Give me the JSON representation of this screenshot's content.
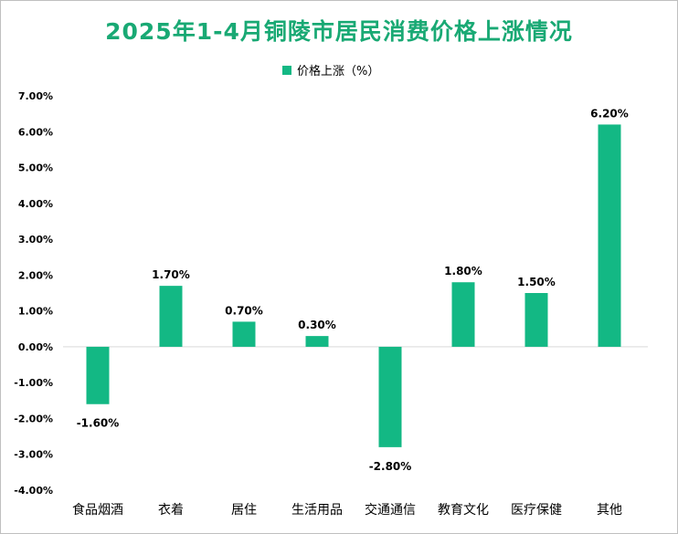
{
  "chart_data": {
    "type": "bar",
    "title": "2025年1-4月铜陵市居民消费价格上涨情况",
    "categories": [
      "食品烟酒",
      "衣着",
      "居住",
      "生活用品",
      "交通通信",
      "教育文化",
      "医疗保健",
      "其他"
    ],
    "series": [
      {
        "name": "价格上涨（%）",
        "values": [
          -1.6,
          1.7,
          0.7,
          0.3,
          -2.8,
          1.8,
          1.5,
          6.2
        ],
        "labels": [
          "-1.60%",
          "1.70%",
          "0.70%",
          "0.30%",
          "-2.80%",
          "1.80%",
          "1.50%",
          "6.20%"
        ]
      }
    ],
    "y_ticks": [
      "7.00%",
      "6.00%",
      "5.00%",
      "4.00%",
      "3.00%",
      "2.00%",
      "1.00%",
      "0.00%",
      "-1.00%",
      "-2.00%",
      "-3.00%",
      "-4.00%"
    ],
    "ylim": [
      -4,
      7
    ],
    "xlabel": "",
    "ylabel": "",
    "grid": false,
    "legend_position": "top",
    "colors": {
      "bar": "#13b884",
      "title": "#19a974",
      "axis": "#d9d9d9"
    }
  }
}
